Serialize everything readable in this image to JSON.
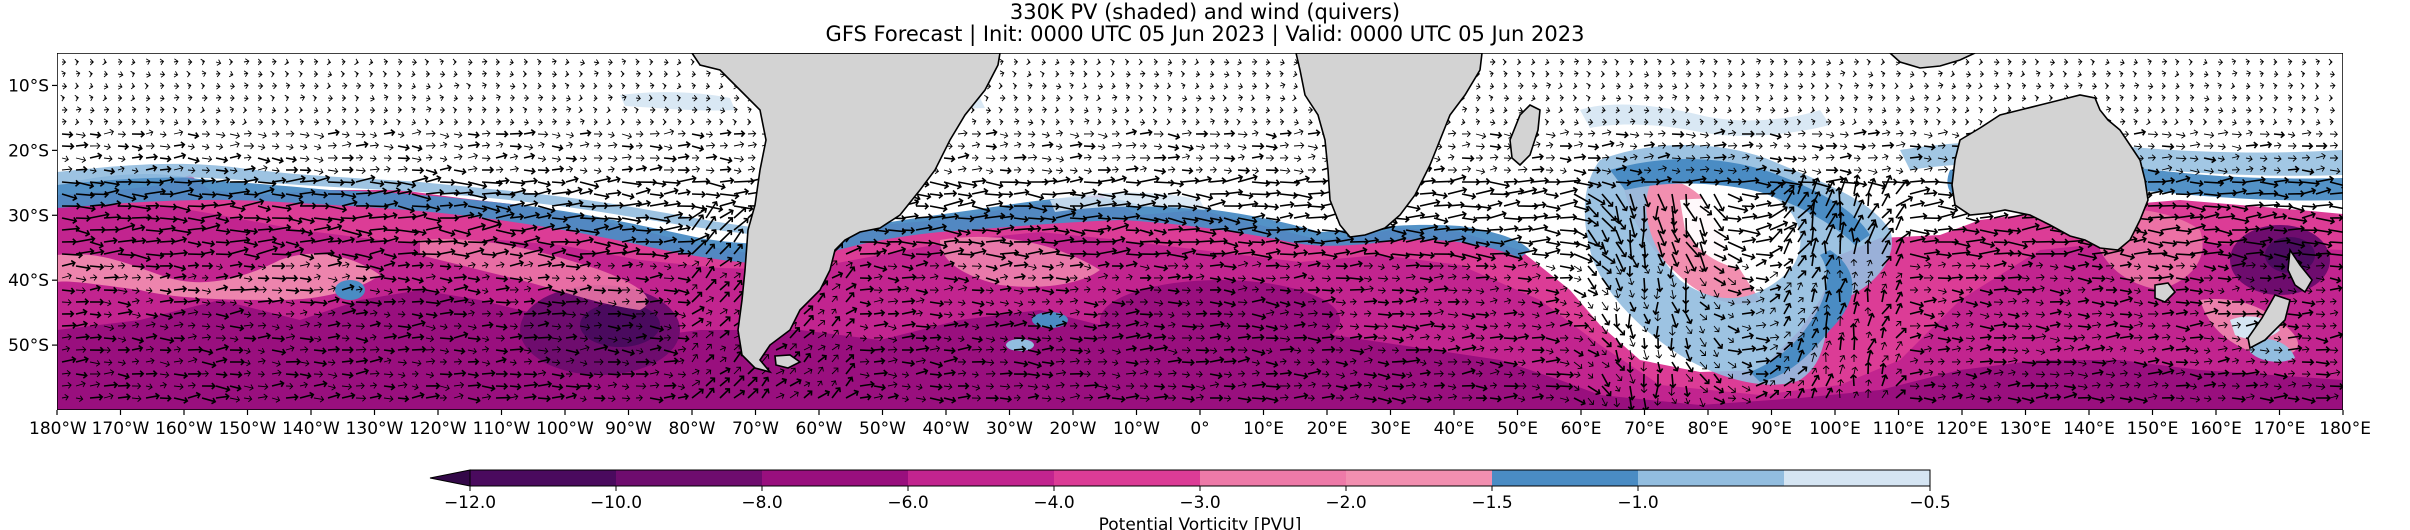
{
  "title": {
    "line1": "330K PV (shaded) and wind (quivers)",
    "line2": "GFS Forecast | Init: 0000 UTC 05 Jun 2023 | Valid: 0000 UTC 05 Jun 2023"
  },
  "map": {
    "projection": "PlateCarree",
    "lon_range": [
      -180,
      180
    ],
    "lat_range": [
      -60,
      -5
    ],
    "land_color": "#d3d3d3",
    "coastline_color": "#000000",
    "lat_ticks": [
      {
        "lat": -10,
        "label": "10°S"
      },
      {
        "lat": -20,
        "label": "20°S"
      },
      {
        "lat": -30,
        "label": "30°S"
      },
      {
        "lat": -40,
        "label": "40°S"
      },
      {
        "lat": -50,
        "label": "50°S"
      }
    ],
    "lon_ticks": [
      {
        "lon": -180,
        "label": "180°W"
      },
      {
        "lon": -170,
        "label": "170°W"
      },
      {
        "lon": -160,
        "label": "160°W"
      },
      {
        "lon": -150,
        "label": "150°W"
      },
      {
        "lon": -140,
        "label": "140°W"
      },
      {
        "lon": -130,
        "label": "130°W"
      },
      {
        "lon": -120,
        "label": "120°W"
      },
      {
        "lon": -110,
        "label": "110°W"
      },
      {
        "lon": -100,
        "label": "100°W"
      },
      {
        "lon": -90,
        "label": "90°W"
      },
      {
        "lon": -80,
        "label": "80°W"
      },
      {
        "lon": -70,
        "label": "70°W"
      },
      {
        "lon": -60,
        "label": "60°W"
      },
      {
        "lon": -50,
        "label": "50°W"
      },
      {
        "lon": -40,
        "label": "40°W"
      },
      {
        "lon": -30,
        "label": "30°W"
      },
      {
        "lon": -20,
        "label": "20°W"
      },
      {
        "lon": -10,
        "label": "10°W"
      },
      {
        "lon": 0,
        "label": "0°"
      },
      {
        "lon": 10,
        "label": "10°E"
      },
      {
        "lon": 20,
        "label": "20°E"
      },
      {
        "lon": 30,
        "label": "30°E"
      },
      {
        "lon": 40,
        "label": "40°E"
      },
      {
        "lon": 50,
        "label": "50°E"
      },
      {
        "lon": 60,
        "label": "60°E"
      },
      {
        "lon": 70,
        "label": "70°E"
      },
      {
        "lon": 80,
        "label": "80°E"
      },
      {
        "lon": 90,
        "label": "90°E"
      },
      {
        "lon": 100,
        "label": "100°E"
      },
      {
        "lon": 110,
        "label": "110°E"
      },
      {
        "lon": 120,
        "label": "120°E"
      },
      {
        "lon": 130,
        "label": "130°E"
      },
      {
        "lon": 140,
        "label": "140°E"
      },
      {
        "lon": 150,
        "label": "150°E"
      },
      {
        "lon": 160,
        "label": "160°E"
      },
      {
        "lon": 170,
        "label": "170°E"
      },
      {
        "lon": 180,
        "label": "180°E"
      }
    ]
  },
  "colorbar": {
    "label": "Potential Vorticity [PVU]",
    "extend": "min",
    "levels": [
      {
        "value": -12.0,
        "label": "−12.0"
      },
      {
        "value": -10.0,
        "label": "−10.0"
      },
      {
        "value": -8.0,
        "label": "−8.0"
      },
      {
        "value": -6.0,
        "label": "−6.0"
      },
      {
        "value": -4.0,
        "label": "−4.0"
      },
      {
        "value": -3.0,
        "label": "−3.0"
      },
      {
        "value": -2.0,
        "label": "−2.0"
      },
      {
        "value": -1.5,
        "label": "−1.5"
      },
      {
        "value": -1.0,
        "label": "−1.0"
      },
      {
        "value": -0.5,
        "label": "−0.5"
      }
    ],
    "colors": [
      "#4a0a5e",
      "#6e0c6e",
      "#990f7e",
      "#c2248f",
      "#dc3c96",
      "#ee7aa8",
      "#f28fb0",
      "#4a8cc4",
      "#92bddf",
      "#d5e5f3"
    ],
    "extend_color": "#330848"
  }
}
